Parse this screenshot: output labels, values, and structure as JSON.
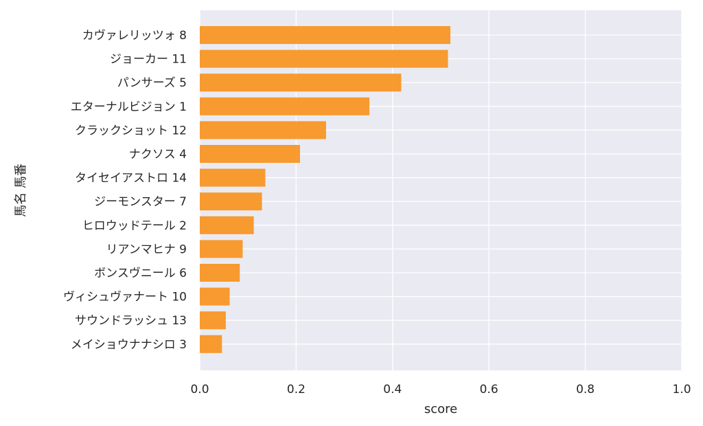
{
  "chart_data": {
    "type": "bar",
    "orientation": "horizontal",
    "xlabel": "score",
    "ylabel": "馬名 馬番",
    "xlim": [
      0,
      1.0
    ],
    "x_ticks": [
      "0.0",
      "0.2",
      "0.4",
      "0.6",
      "0.8",
      "1.0"
    ],
    "grid": true,
    "legend": "none",
    "colors": {
      "bar": "#f7931e",
      "plot_bg": "#eaeaf2",
      "grid": "#ffffff",
      "text": "#262626"
    },
    "categories": [
      "カヴァレリッツォ 8",
      "ジョーカー 11",
      "パンサーズ 5",
      "エターナルビジョン 1",
      "クラックショット 12",
      "ナクソス 4",
      "タイセイアストロ 14",
      "ジーモンスター 7",
      "ヒロウッドテール 2",
      "リアンマヒナ 9",
      "ボンスヴニール 6",
      "ヴィシュヴァナート 10",
      "サウンドラッシュ 13",
      "メイショウナナシロ 3"
    ],
    "values": [
      0.52,
      0.515,
      0.418,
      0.352,
      0.262,
      0.208,
      0.136,
      0.129,
      0.112,
      0.089,
      0.083,
      0.062,
      0.054,
      0.046
    ]
  }
}
